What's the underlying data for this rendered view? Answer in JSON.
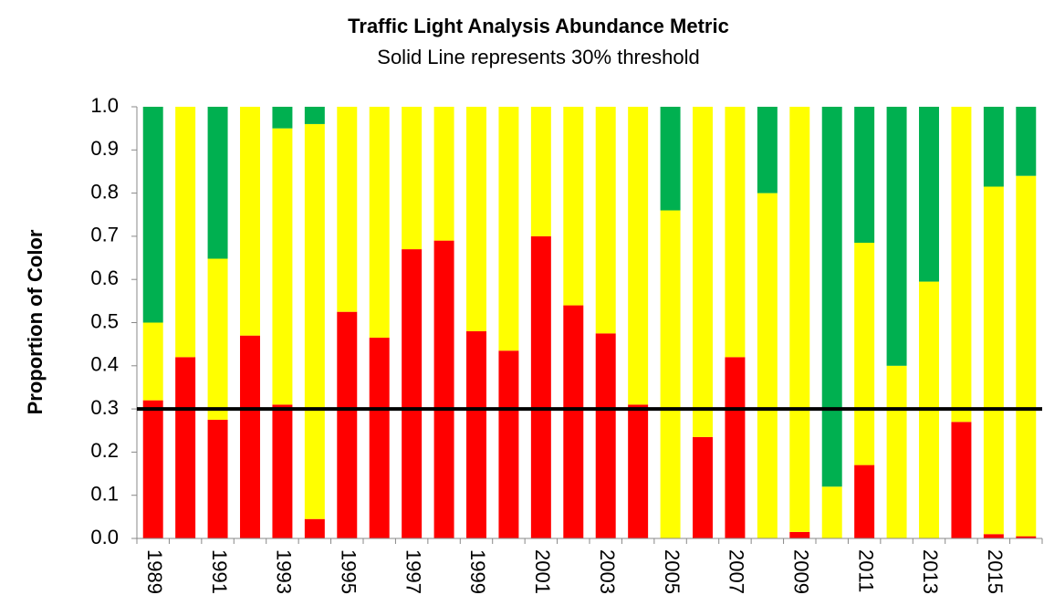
{
  "chart_data": {
    "type": "stacked_bar",
    "title": "Traffic Light Analysis Abundance Metric",
    "subtitle": "Solid Line represents 30% threshold",
    "y_label": "Proportion of Color",
    "categories": [
      "1989",
      null,
      "1991",
      null,
      "1993",
      null,
      "1995",
      null,
      "1997",
      null,
      "1999",
      null,
      "2001",
      null,
      "2003",
      null,
      "2005",
      null,
      "2007",
      null,
      "2009",
      null,
      "2011",
      null,
      "2013",
      null,
      "2015",
      null
    ],
    "series": [
      {
        "color": "#ff0000",
        "values": [
          0.32,
          0.42,
          0.275,
          0.47,
          0.31,
          0.045,
          0.525,
          0.465,
          0.67,
          0.69,
          0.48,
          0.435,
          0.7,
          0.54,
          0.475,
          0.31,
          0,
          0.235,
          0.42,
          0,
          0.015,
          0,
          0.17,
          0,
          0,
          0.27,
          0.01,
          0.005
        ]
      },
      {
        "color": "#ffff00",
        "values": [
          0.18,
          0.58,
          0.373,
          0.53,
          0.64,
          0.915,
          0.475,
          0.535,
          0.33,
          0.31,
          0.52,
          0.565,
          0.3,
          0.46,
          0.525,
          0.69,
          0.76,
          0.765,
          0.58,
          0.8,
          0.985,
          0.12,
          0.515,
          0.4,
          0.595,
          0.73,
          0.805,
          0.835
        ]
      },
      {
        "color": "#00b050",
        "values": [
          0.5,
          0,
          0.352,
          0,
          0.05,
          0.04,
          0,
          0,
          0,
          0,
          0,
          0,
          0,
          0,
          0,
          0,
          0.24,
          0,
          0,
          0.2,
          0,
          0.88,
          0.315,
          0.6,
          0.405,
          0,
          0.185,
          0.16
        ]
      }
    ],
    "reference_line": 0.3,
    "ylim": [
      0,
      1
    ],
    "yticks": [
      {
        "value": 0,
        "label": "0.0"
      },
      0.1,
      0.2,
      0.3,
      0.4,
      0.5,
      0.6,
      0.7,
      0.8,
      0.9,
      {
        "value": 1,
        "label": "1.0"
      }
    ]
  }
}
